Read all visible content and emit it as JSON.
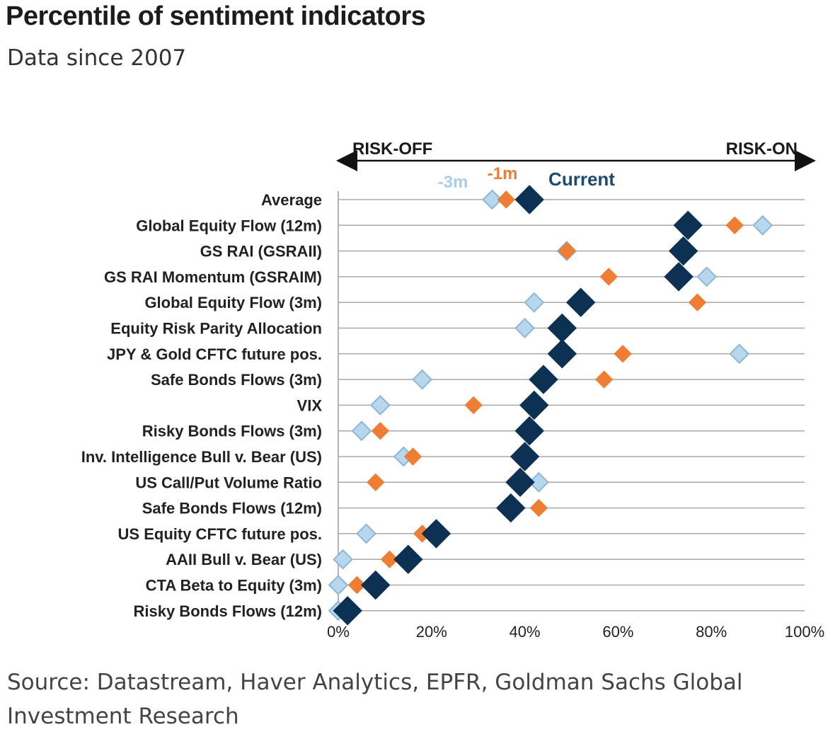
{
  "header": {
    "title": "Percentile of sentiment indicators",
    "subtitle": "Data since 2007"
  },
  "footer": {
    "source_line1": "Source: Datastream, Haver Analytics, EPFR, Goldman Sachs Global",
    "source_line2": "Investment Research"
  },
  "chart_data": {
    "type": "scatter",
    "title": "Percentile of sentiment indicators",
    "subtitle": "Data since 2007",
    "direction_labels": {
      "left": "RISK-OFF",
      "right": "RISK-ON"
    },
    "x_ticks": [
      "0%",
      "20%",
      "40%",
      "60%",
      "80%",
      "100%"
    ],
    "xlim": [
      0,
      100
    ],
    "grid": true,
    "legend_position": "top-center",
    "categories": [
      "Average",
      "Global Equity Flow (12m)",
      "GS RAI (GSRAII)",
      "GS RAI Momentum (GSRAIM)",
      "Global Equity Flow (3m)",
      "Equity Risk Parity Allocation",
      "JPY & Gold CFTC future pos.",
      "Safe Bonds Flows (3m)",
      "VIX",
      "Risky Bonds Flows (3m)",
      "Inv. Intelligence Bull v. Bear (US)",
      "US Call/Put Volume Ratio",
      "Safe Bonds Flows (12m)",
      "US Equity CFTC future pos.",
      "AAII Bull v. Bear (US)",
      "CTA Beta to Equity (3m)",
      "Risky Bonds Flows (12m)"
    ],
    "series": [
      {
        "name": "-3m",
        "color": "#b7d7ee",
        "stroke": "#8fb6d3",
        "values": [
          33,
          91,
          49,
          79,
          42,
          40,
          86,
          18,
          9,
          5,
          14,
          43,
          36,
          6,
          1,
          0,
          0
        ]
      },
      {
        "name": "-1m",
        "color": "#ef7d33",
        "stroke": "#ef7d33",
        "values": [
          36,
          85,
          49,
          58,
          77,
          49,
          61,
          57,
          29,
          9,
          16,
          8,
          43,
          18,
          11,
          4,
          1
        ]
      },
      {
        "name": "Current",
        "color": "#0c3152",
        "stroke": "#0c3152",
        "values": [
          41,
          75,
          74,
          73,
          52,
          48,
          48,
          44,
          42,
          41,
          40,
          39,
          37,
          21,
          15,
          8,
          2
        ]
      }
    ]
  }
}
